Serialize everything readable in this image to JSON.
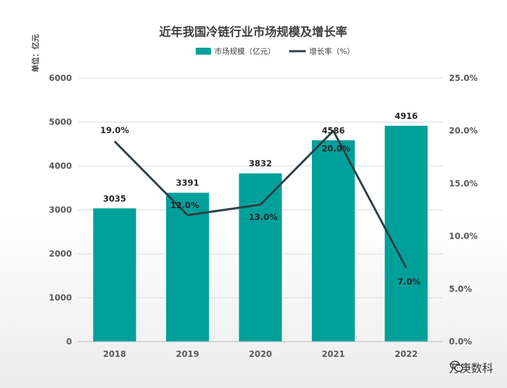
{
  "chart_data": {
    "type": "bar",
    "title": "近年我国冷链行业市场规模及增长率",
    "unit_label": "单位：亿元",
    "categories": [
      "2018",
      "2019",
      "2020",
      "2021",
      "2022"
    ],
    "series": [
      {
        "name": "市场规模（亿元）",
        "type": "bar",
        "axis": "left",
        "values": [
          3035,
          3391,
          3832,
          4586,
          4916
        ],
        "labels": [
          "3035",
          "3391",
          "3832",
          "4586",
          "4916"
        ],
        "color": "#00a09a"
      },
      {
        "name": "增长率（%）",
        "type": "line",
        "axis": "right",
        "values": [
          19.0,
          12.0,
          13.0,
          20.0,
          7.0
        ],
        "labels": [
          "19.0%",
          "12.0%",
          "13.0%",
          "20.0%",
          "7.0%"
        ],
        "color": "#2d3e45"
      }
    ],
    "y_left": {
      "min": 0,
      "max": 6000,
      "ticks": [
        "0",
        "1000",
        "2000",
        "3000",
        "4000",
        "5000",
        "6000"
      ]
    },
    "y_right": {
      "min": 0,
      "max": 25,
      "ticks": [
        "0.0%",
        "5.0%",
        "10.0%",
        "15.0%",
        "20.0%",
        "25.0%"
      ]
    },
    "grid": true,
    "legend_position": "top"
  },
  "watermark": {
    "text": "万庚数科",
    "icon": "wechat-icon"
  }
}
